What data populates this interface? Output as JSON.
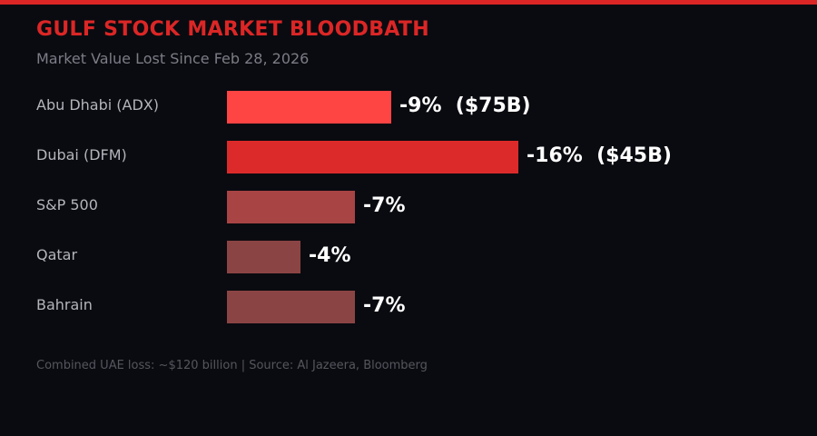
{
  "accent_color": "#dc2626",
  "background_color": "#0a0b10",
  "chart_data": {
    "type": "bar",
    "orientation": "horizontal",
    "title": "GULF STOCK MARKET BLOODBATH",
    "subtitle": "Market Value Lost Since Feb 28, 2026",
    "categories": [
      "Abu Dhabi (ADX)",
      "Dubai (DFM)",
      "S&P 500",
      "Qatar",
      "Bahrain"
    ],
    "values": [
      -9,
      -16,
      -7,
      -4,
      -7
    ],
    "data_labels": [
      "-9%  ($75B)",
      "-16%  ($45B)",
      "-7%",
      "-4%",
      "-7%"
    ],
    "colors": [
      "#ff4444",
      "#dc2a2a",
      "#a84444",
      "#8b4444",
      "#8b4444"
    ],
    "grid": false,
    "footer": "Combined UAE loss: ~$120 billion | Source: Al Jazeera, Bloomberg"
  }
}
